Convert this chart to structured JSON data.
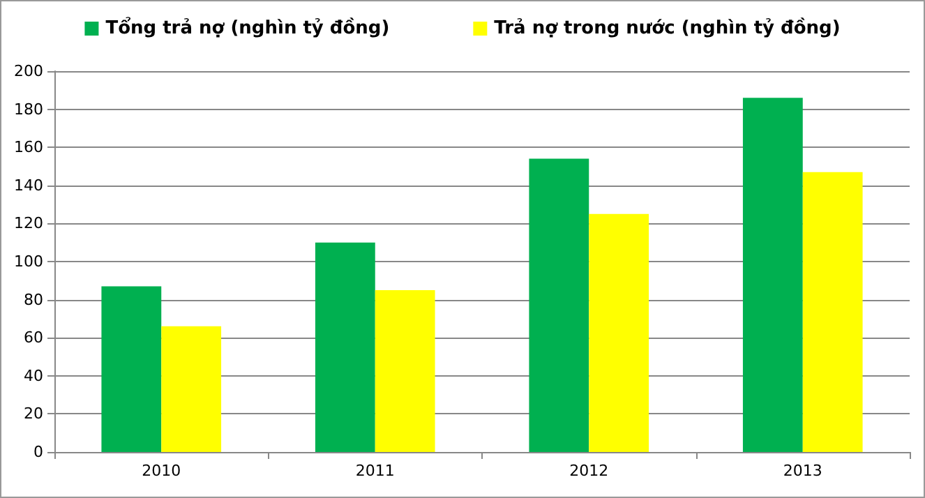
{
  "chart_data": {
    "type": "bar",
    "categories": [
      "2010",
      "2011",
      "2012",
      "2013"
    ],
    "series": [
      {
        "name": "Tổng trả nợ (nghìn tỷ đồng)",
        "color": "#00b050",
        "values": [
          87,
          110,
          154,
          186
        ]
      },
      {
        "name": "Trả nợ trong nước (nghìn tỷ đồng)",
        "color": "#ffff00",
        "values": [
          66,
          85,
          125,
          147
        ]
      }
    ],
    "ylim": [
      0,
      200
    ],
    "yticks": [
      0,
      20,
      40,
      60,
      80,
      100,
      120,
      140,
      160,
      180,
      200
    ],
    "grid": "y",
    "legend": "top"
  }
}
